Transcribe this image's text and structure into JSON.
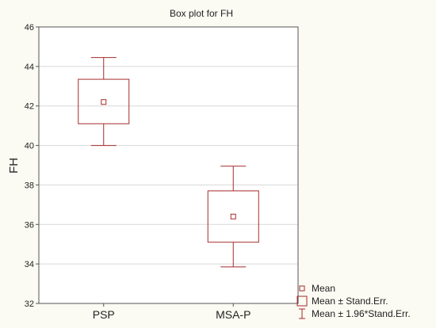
{
  "chart_data": {
    "type": "box",
    "title": "Box plot for FH",
    "xlabel": "",
    "ylabel": "FH",
    "ylim": [
      32,
      46
    ],
    "yticks": [
      32,
      34,
      36,
      38,
      40,
      42,
      44,
      46
    ],
    "grid": "horizontal",
    "categories": [
      "PSP",
      "MSA-P"
    ],
    "series": [
      {
        "category": "PSP",
        "mean": 42.2,
        "se_low": 41.1,
        "se_high": 43.35,
        "ci_low": 40.0,
        "ci_high": 44.45
      },
      {
        "category": "MSA-P",
        "mean": 36.4,
        "se_low": 35.1,
        "se_high": 37.7,
        "ci_low": 33.85,
        "ci_high": 38.95
      }
    ],
    "legend": {
      "placement": "bottom-right",
      "entries": [
        "Mean",
        "Mean ± Stand.Err.",
        "Mean ± 1.96*Stand.Err."
      ]
    },
    "colors": {
      "series": "#a52a2a",
      "grid": "#d8d8d8",
      "frame": "#555555",
      "plot_bg": "#ffffff",
      "page_bg": "#fbfbf3"
    }
  }
}
